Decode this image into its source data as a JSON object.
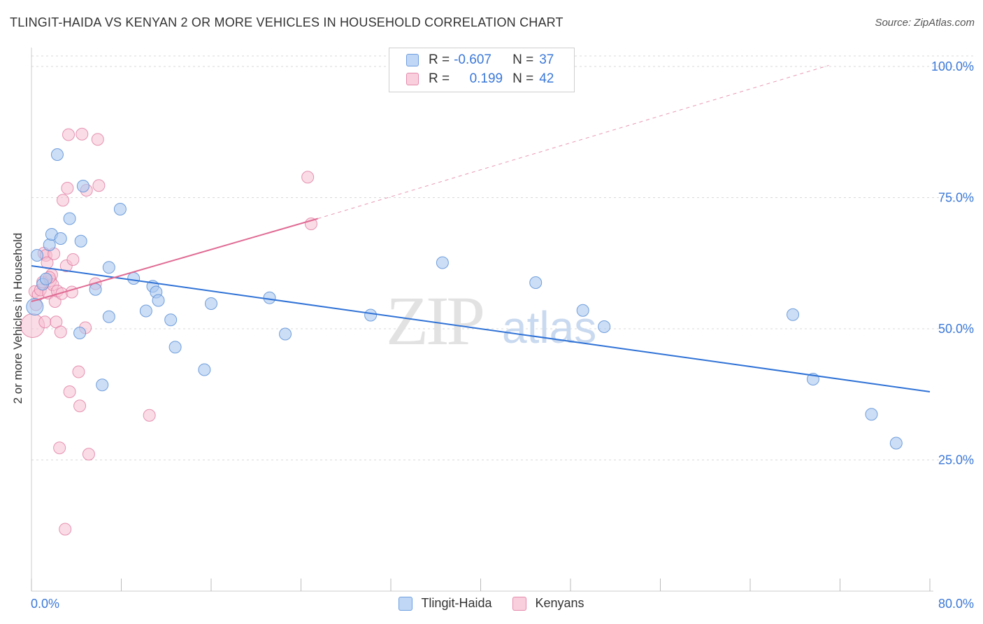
{
  "title": "TLINGIT-HAIDA VS KENYAN 2 OR MORE VEHICLES IN HOUSEHOLD CORRELATION CHART",
  "source": "Source: ZipAtlas.com",
  "watermark": {
    "zip": "ZIP",
    "atlas": "atlas"
  },
  "legend": {
    "r_label": "R =",
    "n_label": "N =",
    "rows": [
      {
        "r": "-0.607",
        "n": "37"
      },
      {
        "r": "0.199",
        "n": "42"
      }
    ]
  },
  "chart_data": {
    "type": "scatter",
    "title": "TLINGIT-HAIDA VS KENYAN 2 OR MORE VEHICLES IN HOUSEHOLD CORRELATION CHART",
    "xlabel": "",
    "ylabel": "2 or more Vehicles in Household",
    "xlim": [
      0,
      80
    ],
    "ylim": [
      0,
      102
    ],
    "x_tick_labels": [
      "0.0%",
      "80.0%"
    ],
    "y_tick_labels": [
      "25.0%",
      "50.0%",
      "75.0%",
      "100.0%"
    ],
    "y_ticks": [
      25,
      50,
      75,
      100
    ],
    "grid": true,
    "legend_position": "top-center",
    "colors": {
      "blue_fill": "#aac8f0",
      "blue_stroke": "#5b8fd6",
      "blue_line": "#2f72d6",
      "pink_fill": "#f6bfd2",
      "pink_stroke": "#e07aa0",
      "pink_line": "#e06b94",
      "axis_text": "#3b78d8"
    },
    "series": [
      {
        "name": "Tlingit-Haida",
        "color": "#aac8f0",
        "trend": {
          "x": [
            0,
            80
          ],
          "y": [
            62.0,
            38.0
          ],
          "dashed_extension": false
        },
        "points": [
          [
            0.3,
            54.2
          ],
          [
            0.5,
            64.0
          ],
          [
            1.0,
            58.5
          ],
          [
            1.3,
            59.5
          ],
          [
            1.6,
            66.0
          ],
          [
            1.8,
            68.0
          ],
          [
            2.3,
            83.2
          ],
          [
            2.6,
            67.2
          ],
          [
            3.4,
            71.0
          ],
          [
            4.3,
            49.2
          ],
          [
            4.4,
            66.7
          ],
          [
            4.6,
            77.2
          ],
          [
            5.7,
            57.5
          ],
          [
            6.3,
            39.3
          ],
          [
            6.9,
            52.3
          ],
          [
            6.9,
            61.7
          ],
          [
            7.9,
            72.8
          ],
          [
            9.1,
            59.6
          ],
          [
            10.2,
            53.4
          ],
          [
            10.8,
            58.1
          ],
          [
            11.1,
            57.0
          ],
          [
            11.3,
            55.4
          ],
          [
            12.4,
            51.7
          ],
          [
            12.8,
            46.5
          ],
          [
            15.4,
            42.2
          ],
          [
            16.0,
            54.8
          ],
          [
            21.2,
            55.9
          ],
          [
            22.6,
            49.0
          ],
          [
            30.2,
            52.6
          ],
          [
            36.6,
            62.6
          ],
          [
            44.9,
            58.8
          ],
          [
            49.1,
            53.5
          ],
          [
            51.0,
            50.4
          ],
          [
            67.8,
            52.7
          ],
          [
            69.6,
            40.4
          ],
          [
            74.8,
            33.7
          ],
          [
            77.0,
            28.2
          ]
        ]
      },
      {
        "name": "Kenyans",
        "color": "#f6bfd2",
        "trend": {
          "x": [
            0,
            25.5
          ],
          "y": [
            55.2,
            71.0
          ],
          "dashed_to": [
            71.0,
            100.2
          ]
        },
        "points": [
          [
            0.1,
            50.6
          ],
          [
            0.3,
            57.1
          ],
          [
            0.4,
            54.6
          ],
          [
            0.6,
            56.5
          ],
          [
            0.8,
            57.4
          ],
          [
            1.0,
            58.9
          ],
          [
            1.1,
            64.4
          ],
          [
            1.2,
            51.3
          ],
          [
            1.3,
            64.0
          ],
          [
            1.4,
            62.6
          ],
          [
            1.5,
            56.8
          ],
          [
            1.7,
            59.2
          ],
          [
            1.8,
            60.3
          ],
          [
            1.9,
            58.4
          ],
          [
            2.0,
            64.3
          ],
          [
            2.1,
            55.2
          ],
          [
            2.2,
            51.3
          ],
          [
            2.3,
            57.2
          ],
          [
            2.5,
            27.3
          ],
          [
            2.6,
            49.4
          ],
          [
            2.7,
            56.7
          ],
          [
            2.8,
            74.5
          ],
          [
            3.0,
            11.8
          ],
          [
            3.1,
            62.0
          ],
          [
            3.2,
            76.8
          ],
          [
            3.3,
            87.0
          ],
          [
            3.4,
            38.0
          ],
          [
            3.6,
            57.0
          ],
          [
            3.7,
            63.2
          ],
          [
            4.2,
            41.8
          ],
          [
            4.3,
            35.3
          ],
          [
            4.5,
            87.1
          ],
          [
            4.8,
            50.2
          ],
          [
            4.9,
            76.4
          ],
          [
            5.1,
            26.1
          ],
          [
            5.7,
            58.6
          ],
          [
            5.9,
            86.1
          ],
          [
            6.0,
            77.3
          ],
          [
            10.5,
            33.5
          ],
          [
            24.6,
            78.9
          ],
          [
            24.9,
            70.0
          ],
          [
            1.6,
            59.8
          ]
        ]
      }
    ]
  },
  "bottom_legend": [
    {
      "label": "Tlingit-Haida"
    },
    {
      "label": "Kenyans"
    }
  ]
}
